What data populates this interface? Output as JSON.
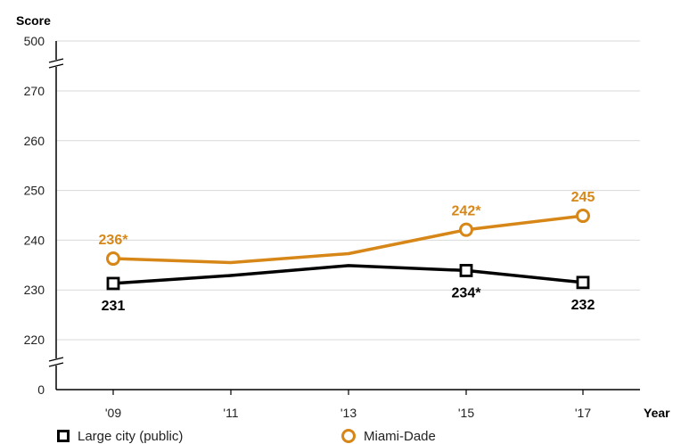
{
  "chart_data": {
    "type": "line",
    "xlabel": "Year",
    "ylabel": "Score",
    "categories": [
      "'09",
      "'11",
      "'13",
      "'15",
      "'17"
    ],
    "yticks": [
      "0",
      "220",
      "230",
      "240",
      "250",
      "260",
      "270",
      "500"
    ],
    "ylim_visible": [
      215,
      275
    ],
    "axis_breaks": [
      "below 220",
      "above 270"
    ],
    "grid": true,
    "legend_position": "bottom",
    "series": [
      {
        "name": "Large city (public)",
        "color": "#000000",
        "marker": "square",
        "values": [
          231.3,
          232.9,
          234.9,
          233.9,
          231.5
        ],
        "markers_at": [
          0,
          3,
          4
        ],
        "labels": {
          "0": "231",
          "3": "234*",
          "4": "232"
        }
      },
      {
        "name": "Miami-Dade",
        "color": "#d68718",
        "marker": "circle",
        "values": [
          236.3,
          235.5,
          237.3,
          242.1,
          244.9
        ],
        "markers_at": [
          0,
          3,
          4
        ],
        "labels": {
          "0": "236*",
          "3": "242*",
          "4": "245"
        }
      }
    ]
  }
}
